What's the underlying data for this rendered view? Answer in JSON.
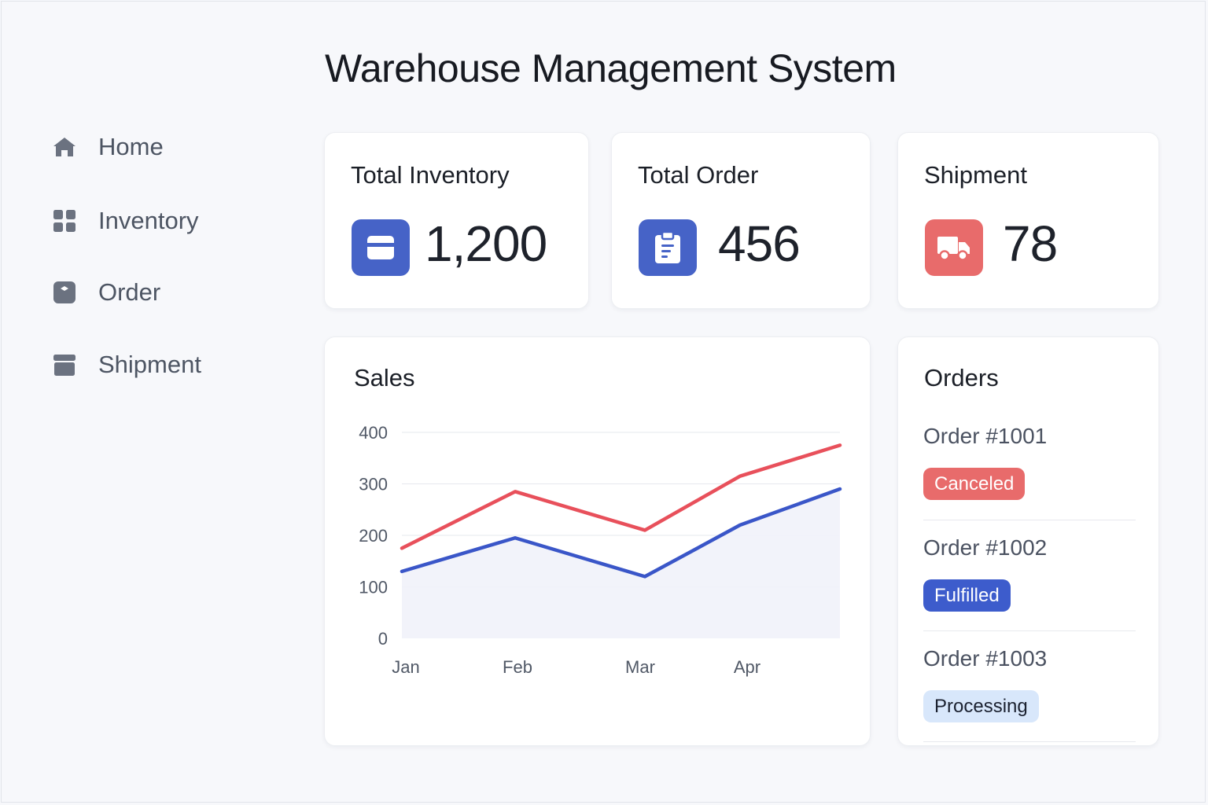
{
  "app": {
    "title": "Warehouse Management System"
  },
  "sidebar": {
    "items": [
      {
        "label": "Home",
        "icon": "home-icon"
      },
      {
        "label": "Inventory",
        "icon": "grid-icon"
      },
      {
        "label": "Order",
        "icon": "box-icon"
      },
      {
        "label": "Shipment",
        "icon": "archive-icon"
      }
    ]
  },
  "stats": [
    {
      "title": "Total Inventory",
      "value": "1,200",
      "icon": "card-icon",
      "color": "#4663c7"
    },
    {
      "title": "Total Order",
      "value": "456",
      "icon": "clipboard-icon",
      "color": "#4663c7"
    },
    {
      "title": "Shipment",
      "value": "78",
      "icon": "truck-icon",
      "color": "#e86b6b"
    }
  ],
  "sales": {
    "title": "Sales"
  },
  "chart_data": {
    "type": "line",
    "title": "Sales",
    "categories": [
      "Jan",
      "Feb",
      "Mar",
      "Apr",
      ""
    ],
    "x_ticks": [
      "Jan",
      "Feb",
      "Mar",
      "Apr"
    ],
    "y_ticks": [
      "0",
      "100",
      "200",
      "300",
      "400"
    ],
    "ylim": [
      0,
      400
    ],
    "grid": true,
    "series": [
      {
        "values": [
          175,
          285,
          210,
          315,
          375
        ],
        "color": "#e8505b"
      },
      {
        "values": [
          130,
          195,
          120,
          220,
          290
        ],
        "color": "#3a56c8"
      }
    ]
  },
  "orders": {
    "title": "Orders",
    "items": [
      {
        "name": "Order #1001",
        "status": "Canceled",
        "bg": "#e86b6b",
        "fg": "#ffffff"
      },
      {
        "name": "Order #1002",
        "status": "Fulfilled",
        "bg": "#3d5ccc",
        "fg": "#ffffff"
      },
      {
        "name": "Order #1003",
        "status": "Processing",
        "bg": "#d8e7fb",
        "fg": "#1b2130"
      }
    ]
  }
}
